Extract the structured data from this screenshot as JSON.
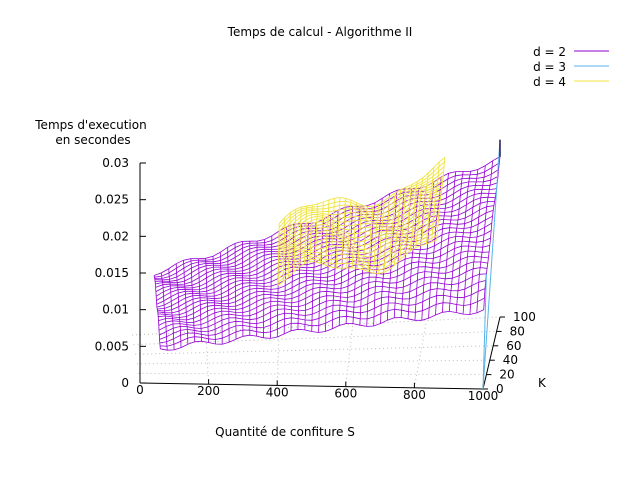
{
  "chart_data": {
    "type": "surface3d",
    "title": "Temps de calcul - Algorithme II",
    "xlabel": "Quantité de confiture S",
    "ylabel": "K",
    "zlabel_lines": [
      "Temps d'execution",
      "en secondes"
    ],
    "xlim": [
      0,
      1000
    ],
    "ylim": [
      0,
      100
    ],
    "zlim": [
      0,
      0.03
    ],
    "x_ticks": [
      "0",
      "200",
      "400",
      "600",
      "800",
      "1000"
    ],
    "y_ticks": [
      "0",
      "20",
      "40",
      "60",
      "80",
      "100"
    ],
    "z_ticks": [
      "0",
      "0.005",
      "0.01",
      "0.015",
      "0.02",
      "0.025",
      "0.03"
    ],
    "grid": true,
    "legend_position": "top-right",
    "series": [
      {
        "name": "d = 2",
        "color": "#9400d3",
        "description_values": {
          "z_at_S0_K100": 0.0075,
          "z_at_S1000_K100": 0.0215,
          "z_at_S0_K0": 0.0035,
          "z_at_S1000_K0": 0.0085,
          "z_spike_at_S1000_K0": 0.034
        }
      },
      {
        "name": "d = 3",
        "color": "#56b4e9",
        "description_values": {
          "z_spike_at_S1000_K0": 0.034
        }
      },
      {
        "name": "d = 4",
        "color": "#f0e442",
        "description_values": {
          "visible_region_S": [
            400,
            850
          ],
          "z_range": [
            0.008,
            0.018
          ]
        }
      }
    ]
  }
}
